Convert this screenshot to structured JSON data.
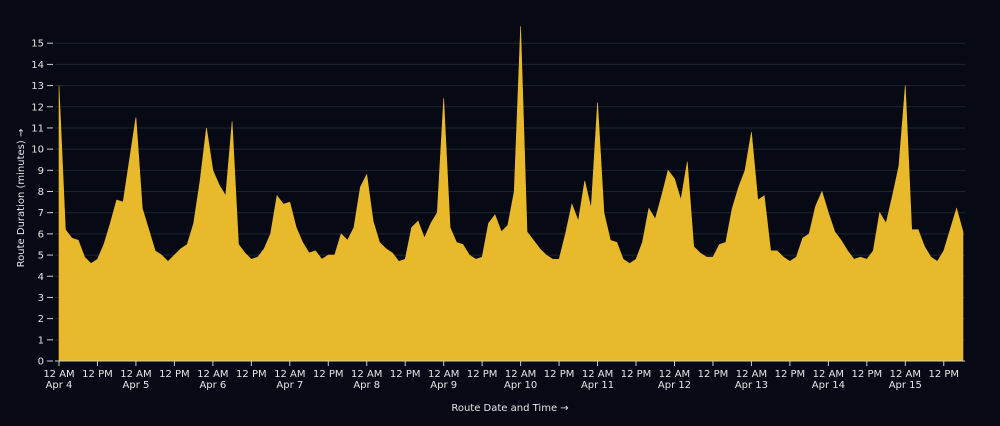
{
  "chart_data": {
    "type": "area",
    "xlabel": "Route Date and Time →",
    "ylabel": "Route Duration (minutes) →",
    "color": "#e8b92a",
    "grid": true,
    "ylim": [
      0,
      16
    ],
    "yticks": [
      0,
      1,
      2,
      3,
      4,
      5,
      6,
      7,
      8,
      9,
      10,
      11,
      12,
      13,
      14,
      15
    ],
    "x": [
      "Apr 4 12 AM",
      "Apr 4 2 AM",
      "Apr 4 4 AM",
      "Apr 4 6 AM",
      "Apr 4 8 AM",
      "Apr 4 10 AM",
      "Apr 4 12 PM",
      "Apr 4 2 PM",
      "Apr 4 4 PM",
      "Apr 4 6 PM",
      "Apr 4 8 PM",
      "Apr 4 10 PM",
      "Apr 5 12 AM",
      "Apr 5 2 AM",
      "Apr 5 4 AM",
      "Apr 5 6 AM",
      "Apr 5 8 AM",
      "Apr 5 10 AM",
      "Apr 5 12 PM",
      "Apr 5 2 PM",
      "Apr 5 4 PM",
      "Apr 5 6 PM",
      "Apr 5 8 PM",
      "Apr 5 10 PM",
      "Apr 6 12 AM",
      "Apr 6 2 AM",
      "Apr 6 4 AM",
      "Apr 6 6 AM",
      "Apr 6 8 AM",
      "Apr 6 10 AM",
      "Apr 6 12 PM",
      "Apr 6 2 PM",
      "Apr 6 4 PM",
      "Apr 6 6 PM",
      "Apr 6 8 PM",
      "Apr 6 10 PM",
      "Apr 7 12 AM",
      "Apr 7 2 AM",
      "Apr 7 4 AM",
      "Apr 7 6 AM",
      "Apr 7 8 AM",
      "Apr 7 10 AM",
      "Apr 7 12 PM",
      "Apr 7 2 PM",
      "Apr 7 4 PM",
      "Apr 7 6 PM",
      "Apr 7 8 PM",
      "Apr 7 10 PM",
      "Apr 8 12 AM",
      "Apr 8 2 AM",
      "Apr 8 4 AM",
      "Apr 8 6 AM",
      "Apr 8 8 AM",
      "Apr 8 10 AM",
      "Apr 8 12 PM",
      "Apr 8 2 PM",
      "Apr 8 4 PM",
      "Apr 8 6 PM",
      "Apr 8 8 PM",
      "Apr 8 10 PM",
      "Apr 9 12 AM",
      "Apr 9 2 AM",
      "Apr 9 4 AM",
      "Apr 9 6 AM",
      "Apr 9 8 AM",
      "Apr 9 10 AM",
      "Apr 9 12 PM",
      "Apr 9 2 PM",
      "Apr 9 4 PM",
      "Apr 9 6 PM",
      "Apr 9 8 PM",
      "Apr 9 10 PM",
      "Apr 10 12 AM",
      "Apr 10 2 AM",
      "Apr 10 4 AM",
      "Apr 10 6 AM",
      "Apr 10 8 AM",
      "Apr 10 10 AM",
      "Apr 10 12 PM",
      "Apr 10 2 PM",
      "Apr 10 4 PM",
      "Apr 10 6 PM",
      "Apr 10 8 PM",
      "Apr 10 10 PM",
      "Apr 11 12 AM",
      "Apr 11 2 AM",
      "Apr 11 4 AM",
      "Apr 11 6 AM",
      "Apr 11 8 AM",
      "Apr 11 10 AM",
      "Apr 11 12 PM",
      "Apr 11 2 PM",
      "Apr 11 4 PM",
      "Apr 11 6 PM",
      "Apr 11 8 PM",
      "Apr 11 10 PM",
      "Apr 12 12 AM",
      "Apr 12 2 AM",
      "Apr 12 4 AM",
      "Apr 12 6 AM",
      "Apr 12 8 AM",
      "Apr 12 10 AM",
      "Apr 12 12 PM",
      "Apr 12 2 PM",
      "Apr 12 4 PM",
      "Apr 12 6 PM",
      "Apr 12 8 PM",
      "Apr 12 10 PM",
      "Apr 13 12 AM",
      "Apr 13 2 AM",
      "Apr 13 4 AM",
      "Apr 13 6 AM",
      "Apr 13 8 AM",
      "Apr 13 10 AM",
      "Apr 13 12 PM",
      "Apr 13 2 PM",
      "Apr 13 4 PM",
      "Apr 13 6 PM",
      "Apr 13 8 PM",
      "Apr 13 10 PM",
      "Apr 14 12 AM",
      "Apr 14 2 AM",
      "Apr 14 4 AM",
      "Apr 14 6 AM",
      "Apr 14 8 AM",
      "Apr 14 10 AM",
      "Apr 14 12 PM",
      "Apr 14 2 PM",
      "Apr 14 4 PM",
      "Apr 14 6 PM",
      "Apr 14 8 PM",
      "Apr 14 10 PM",
      "Apr 15 12 AM",
      "Apr 15 2 AM",
      "Apr 15 4 AM",
      "Apr 15 6 AM",
      "Apr 15 8 AM",
      "Apr 15 10 AM",
      "Apr 15 12 PM",
      "Apr 15 2 PM",
      "Apr 15 4 PM",
      "Apr 15 6 PM"
    ],
    "values": [
      13.0,
      6.2,
      5.8,
      5.7,
      4.9,
      4.6,
      4.8,
      5.5,
      6.5,
      7.6,
      7.5,
      9.5,
      11.5,
      7.2,
      6.2,
      5.2,
      5.0,
      4.7,
      5.0,
      5.3,
      5.5,
      6.5,
      8.5,
      11.0,
      9.0,
      8.3,
      7.8,
      11.3,
      5.5,
      5.1,
      4.8,
      4.9,
      5.3,
      6.0,
      7.8,
      7.4,
      7.5,
      6.3,
      5.6,
      5.1,
      5.2,
      4.8,
      5.0,
      5.0,
      6.0,
      5.7,
      6.3,
      8.2,
      8.8,
      6.6,
      5.6,
      5.3,
      5.1,
      4.7,
      4.8,
      6.3,
      6.6,
      5.8,
      6.5,
      7.0,
      12.4,
      6.3,
      5.6,
      5.5,
      5.0,
      4.8,
      4.9,
      6.5,
      6.9,
      6.1,
      6.4,
      8.0,
      15.8,
      6.1,
      5.7,
      5.3,
      5.0,
      4.8,
      4.8,
      6.0,
      7.4,
      6.6,
      8.5,
      7.2,
      12.2,
      7.0,
      5.7,
      5.6,
      4.8,
      4.6,
      4.8,
      5.6,
      7.2,
      6.7,
      7.8,
      9.0,
      8.6,
      7.6,
      9.4,
      5.4,
      5.1,
      4.9,
      4.9,
      5.5,
      5.6,
      7.2,
      8.2,
      9.0,
      10.8,
      7.6,
      7.8,
      5.2,
      5.2,
      4.9,
      4.7,
      4.9,
      5.8,
      6.0,
      7.3,
      8.0,
      7.0,
      6.1,
      5.7,
      5.2,
      4.8,
      4.9,
      4.8,
      5.2,
      7.0,
      6.5,
      7.8,
      9.2,
      13.0,
      6.2,
      6.2,
      5.4,
      4.9,
      4.7,
      5.2,
      6.2,
      7.2,
      6.1
    ],
    "xticks": [
      {
        "value": "Apr 4 12 AM",
        "label": "12 AM",
        "sublabel": "Apr 4"
      },
      {
        "value": "Apr 4 12 PM",
        "label": "12 PM"
      },
      {
        "value": "Apr 5 12 AM",
        "label": "12 AM",
        "sublabel": "Apr 5"
      },
      {
        "value": "Apr 5 12 PM",
        "label": "12 PM"
      },
      {
        "value": "Apr 6 12 AM",
        "label": "12 AM",
        "sublabel": "Apr 6"
      },
      {
        "value": "Apr 6 12 PM",
        "label": "12 PM"
      },
      {
        "value": "Apr 7 12 AM",
        "label": "12 AM",
        "sublabel": "Apr 7"
      },
      {
        "value": "Apr 7 12 PM",
        "label": "12 PM"
      },
      {
        "value": "Apr 8 12 AM",
        "label": "12 AM",
        "sublabel": "Apr 8"
      },
      {
        "value": "Apr 8 12 PM",
        "label": "12 PM"
      },
      {
        "value": "Apr 9 12 AM",
        "label": "12 AM",
        "sublabel": "Apr 9"
      },
      {
        "value": "Apr 9 12 PM",
        "label": "12 PM"
      },
      {
        "value": "Apr 10 12 AM",
        "label": "12 AM",
        "sublabel": "Apr 10"
      },
      {
        "value": "Apr 10 12 PM",
        "label": "12 PM"
      },
      {
        "value": "Apr 11 12 AM",
        "label": "12 AM",
        "sublabel": "Apr 11"
      },
      {
        "value": "Apr 11 12 PM",
        "label": "12 PM"
      },
      {
        "value": "Apr 12 12 AM",
        "label": "12 AM",
        "sublabel": "Apr 12"
      },
      {
        "value": "Apr 12 12 PM",
        "label": "12 PM"
      },
      {
        "value": "Apr 13 12 AM",
        "label": "12 AM",
        "sublabel": "Apr 13"
      },
      {
        "value": "Apr 13 12 PM",
        "label": "12 PM"
      },
      {
        "value": "Apr 14 12 AM",
        "label": "12 AM",
        "sublabel": "Apr 14"
      },
      {
        "value": "Apr 14 12 PM",
        "label": "12 PM"
      },
      {
        "value": "Apr 15 12 AM",
        "label": "12 AM",
        "sublabel": "Apr 15"
      },
      {
        "value": "Apr 15 12 PM",
        "label": "12 PM"
      }
    ]
  }
}
